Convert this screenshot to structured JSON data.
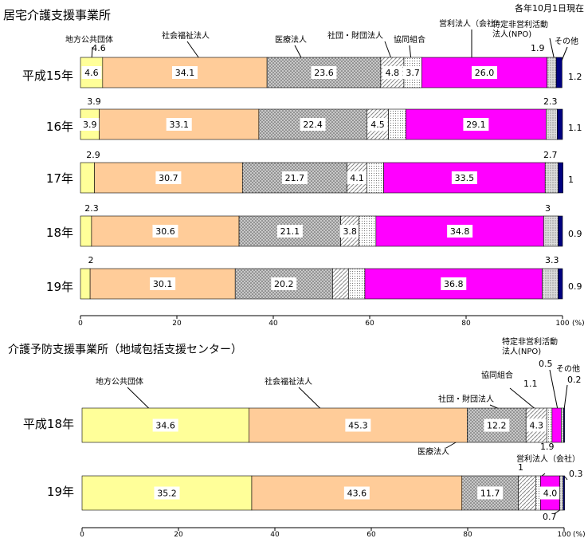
{
  "chart_data": [
    {
      "type": "bar",
      "orientation": "horizontal",
      "stacked": true,
      "title": "居宅介護支援事業所",
      "note": "各年10月1日現在",
      "unit": "(%)",
      "xlim": [
        0,
        100
      ],
      "x_ticks": [
        "0",
        "20",
        "40",
        "60",
        "80",
        "100"
      ],
      "categories": [
        "平成15年",
        "16年",
        "17年",
        "18年",
        "19年"
      ],
      "series": [
        {
          "name": "地方公共団体",
          "values": [
            4.6,
            3.9,
            2.9,
            2.3,
            2.0
          ],
          "color": "#ffff99"
        },
        {
          "name": "社会福祉法人",
          "values": [
            34.1,
            33.1,
            30.7,
            30.6,
            30.1
          ],
          "color": "#ffcc99"
        },
        {
          "name": "医療法人",
          "values": [
            23.6,
            22.4,
            21.7,
            21.1,
            20.2
          ],
          "color": "#c0c0c0"
        },
        {
          "name": "社団・財団法人",
          "values": [
            4.8,
            4.5,
            4.1,
            3.8,
            3.3
          ],
          "color": "#ffffff"
        },
        {
          "name": "協同組合",
          "values": [
            3.7,
            3.6,
            3.5,
            3.5,
            3.4
          ],
          "color": "#f2f2f2"
        },
        {
          "name": "営利法人（会社）",
          "values": [
            26.0,
            29.1,
            33.5,
            34.8,
            36.8
          ],
          "color": "#ff00ff"
        },
        {
          "name": "特定非営利活動法人(NPO)",
          "values": [
            1.9,
            2.3,
            2.7,
            3.0,
            3.3
          ],
          "color": "#d9d9d9"
        },
        {
          "name": "その他",
          "values": [
            1.2,
            1.1,
            1.0,
            0.9,
            0.9
          ],
          "color": "#000080"
        }
      ]
    },
    {
      "type": "bar",
      "orientation": "horizontal",
      "stacked": true,
      "title": "介護予防支援事業所（地域包括支援センター）",
      "unit": "(%)",
      "xlim": [
        0,
        100
      ],
      "x_ticks": [
        "0",
        "20",
        "40",
        "60",
        "80",
        "100"
      ],
      "categories": [
        "平成18年",
        "19年"
      ],
      "series": [
        {
          "name": "地方公共団体",
          "values": [
            34.6,
            35.2
          ],
          "color": "#ffff99"
        },
        {
          "name": "社会福祉法人",
          "values": [
            45.3,
            43.6
          ],
          "color": "#ffcc99"
        },
        {
          "name": "医療法人",
          "values": [
            12.2,
            11.7
          ],
          "color": "#c0c0c0"
        },
        {
          "name": "社団・財団法人",
          "values": [
            4.3,
            3.6
          ],
          "color": "#ffffff"
        },
        {
          "name": "協同組合",
          "values": [
            1.1,
            1.0
          ],
          "color": "#f2f2f2"
        },
        {
          "name": "営利法人（会社）",
          "values": [
            1.9,
            4.0
          ],
          "color": "#ff00ff"
        },
        {
          "name": "特定非営利活動法人(NPO)",
          "values": [
            0.5,
            0.7
          ],
          "color": "#d9d9d9"
        },
        {
          "name": "その他",
          "values": [
            0.2,
            0.3
          ],
          "color": "#000080"
        }
      ]
    }
  ]
}
